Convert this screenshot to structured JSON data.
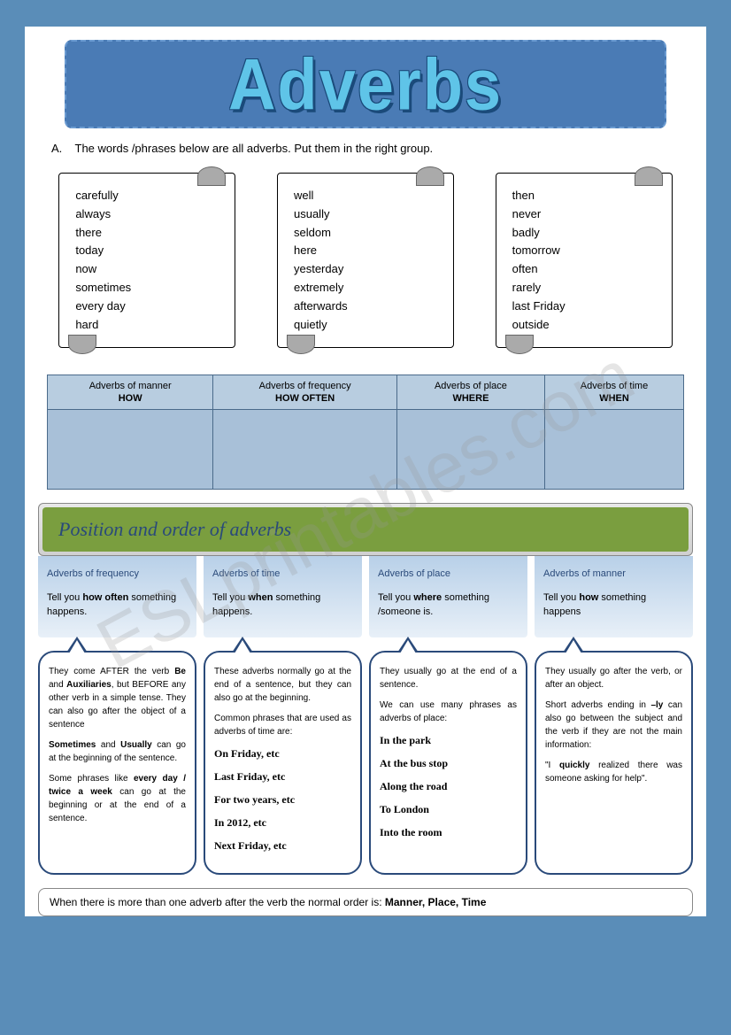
{
  "watermark": "ESLprintables.com",
  "banner": {
    "title": "Adverbs"
  },
  "instruction": {
    "letter": "A.",
    "text": "The words /phrases below are all adverbs. Put them in the right group."
  },
  "scrolls": [
    {
      "items": [
        "carefully",
        "always",
        "there",
        "today",
        "now",
        "sometimes",
        "every day",
        "hard"
      ]
    },
    {
      "items": [
        "well",
        "usually",
        "seldom",
        "here",
        "yesterday",
        "extremely",
        "afterwards",
        "quietly"
      ]
    },
    {
      "items": [
        "then",
        "never",
        "badly",
        "tomorrow",
        "often",
        "rarely",
        "last Friday",
        "outside"
      ]
    }
  ],
  "table": {
    "headers": [
      {
        "top": "Adverbs of manner",
        "sub": "HOW"
      },
      {
        "top": "Adverbs of frequency",
        "sub": "HOW OFTEN"
      },
      {
        "top": "Adverbs of place",
        "sub": "WHERE"
      },
      {
        "top": "Adverbs of time",
        "sub": "WHEN"
      }
    ]
  },
  "section2_title": "Position and order of adverbs",
  "infoboxes": [
    {
      "title": "Adverbs of frequency",
      "desc_pre": "Tell you ",
      "desc_bold": "how often",
      "desc_post": " something happens."
    },
    {
      "title": "Adverbs of time",
      "desc_pre": "Tell you ",
      "desc_bold": "when",
      "desc_post": " something happens."
    },
    {
      "title": "Adverbs of place",
      "desc_pre": "Tell you ",
      "desc_bold": "where",
      "desc_post": " something /someone is."
    },
    {
      "title": "Adverbs of manner",
      "desc_pre": "Tell you ",
      "desc_bold": "how",
      "desc_post": " something happens"
    }
  ],
  "speeches": {
    "s1": {
      "p1a": "They come AFTER the verb ",
      "p1b": "Be",
      "p1c": " and ",
      "p1d": "Auxiliaries",
      "p1e": ", but BEFORE any other verb in a simple tense. They can also go after the object of a sentence",
      "p2a": "Sometimes",
      "p2b": " and ",
      "p2c": "Usually",
      "p2d": " can go at the beginning of the sentence.",
      "p3a": "Some phrases like ",
      "p3b": "every day / twice a week",
      "p3c": " can go at the beginning or at the end of a sentence."
    },
    "s2": {
      "p1": "These adverbs normally go at the end of a sentence, but they can also go at the beginning.",
      "p2": "Common phrases that are used as adverbs of time are:",
      "ex": [
        "On Friday, etc",
        "Last Friday, etc",
        "For two years, etc",
        "In 2012, etc",
        "Next Friday, etc"
      ]
    },
    "s3": {
      "p1": "They usually go at the end of a sentence.",
      "p2": "We can use many phrases as adverbs of place:",
      "ex": [
        "In the park",
        "At the bus stop",
        "Along the road",
        "To London",
        "Into the room"
      ]
    },
    "s4": {
      "p1": "They usually go after the verb, or after an object.",
      "p2a": "Short adverbs ending in ",
      "p2b": "–ly",
      "p2c": " can also go between the subject and the verb if they are not the main information:",
      "p3a": "\"I ",
      "p3b": "quickly",
      "p3c": " realized there was someone asking for help\"."
    }
  },
  "footer": {
    "pre": "When there is more than one adverb after the verb the normal order is: ",
    "bold": "Manner, Place, Time"
  }
}
